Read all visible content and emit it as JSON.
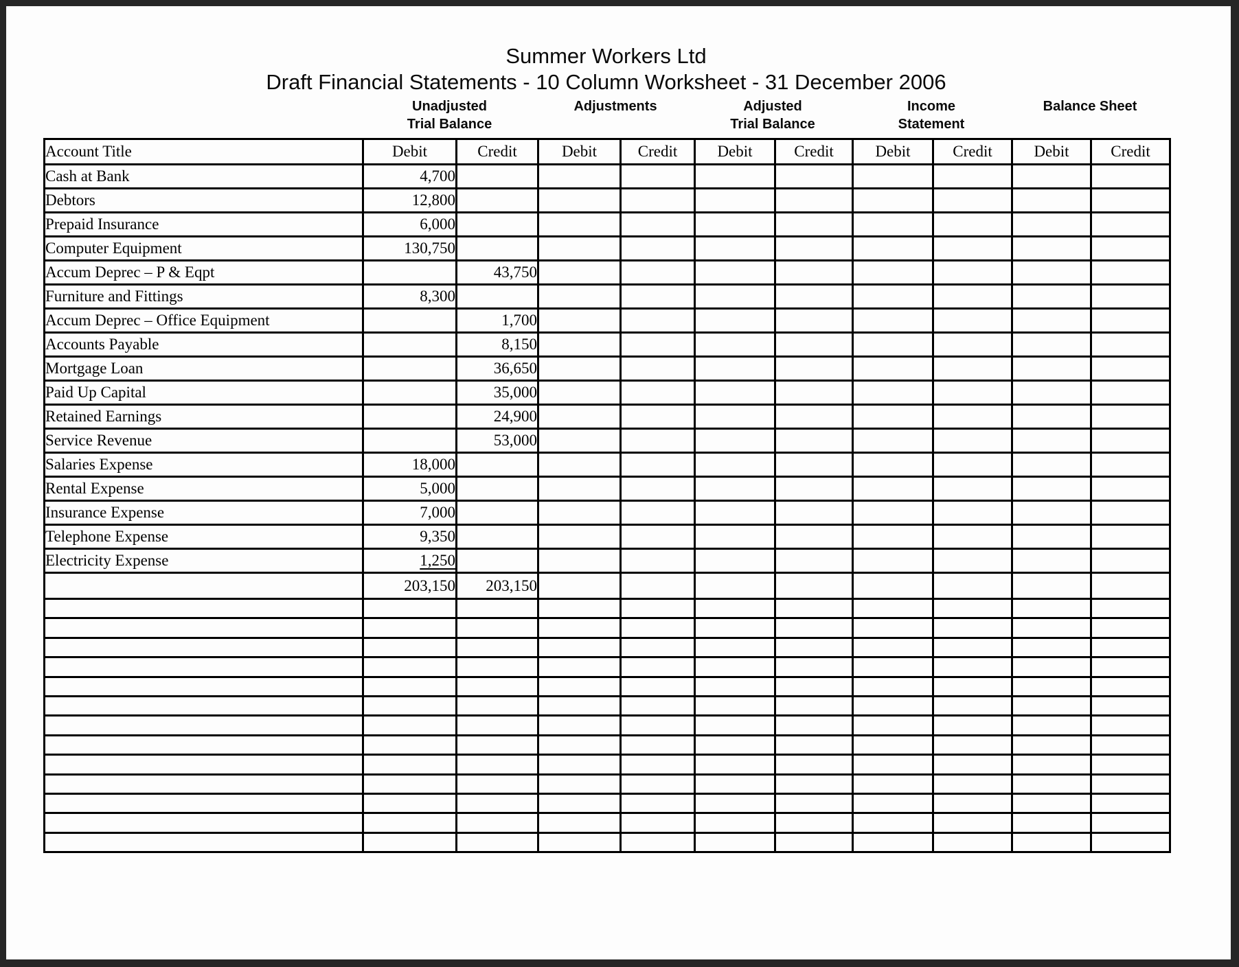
{
  "header": {
    "company": "Summer Workers Ltd",
    "document_title": "Draft Financial Statements - 10 Column Worksheet - 31 December 2006"
  },
  "column_groups": [
    {
      "line1": "Unadjusted",
      "line2": "Trial Balance"
    },
    {
      "line1": "Adjustments",
      "line2": ""
    },
    {
      "line1": "Adjusted",
      "line2": "Trial Balance"
    },
    {
      "line1": "Income",
      "line2": "Statement"
    },
    {
      "line1": "Balance Sheet",
      "line2": ""
    }
  ],
  "table": {
    "headers": {
      "account": "Account Title",
      "debit": "Debit",
      "credit": "Credit"
    },
    "rows": [
      {
        "account": "Cash at Bank",
        "debit": "4,700",
        "credit": ""
      },
      {
        "account": "Debtors",
        "debit": "12,800",
        "credit": ""
      },
      {
        "account": "Prepaid Insurance",
        "debit": "6,000",
        "credit": ""
      },
      {
        "account": "Computer Equipment",
        "debit": "130,750",
        "credit": ""
      },
      {
        "account": "Accum Deprec – P & Eqpt",
        "debit": "",
        "credit": "43,750"
      },
      {
        "account": "Furniture and Fittings",
        "debit": "8,300",
        "credit": ""
      },
      {
        "account": "Accum Deprec – Office Equipment",
        "debit": "",
        "credit": "1,700"
      },
      {
        "account": "Accounts Payable",
        "debit": "",
        "credit": "8,150"
      },
      {
        "account": "Mortgage Loan",
        "debit": "",
        "credit": "36,650"
      },
      {
        "account": "Paid Up Capital",
        "debit": "",
        "credit": "35,000"
      },
      {
        "account": "Retained Earnings",
        "debit": "",
        "credit": "24,900"
      },
      {
        "account": "Service Revenue",
        "debit": "",
        "credit": "53,000"
      },
      {
        "account": "Salaries Expense",
        "debit": "18,000",
        "credit": ""
      },
      {
        "account": "Rental Expense",
        "debit": "5,000",
        "credit": ""
      },
      {
        "account": "Insurance Expense",
        "debit": "7,000",
        "credit": ""
      },
      {
        "account": "Telephone Expense",
        "debit": "9,350",
        "credit": ""
      },
      {
        "account": "Electricity Expense",
        "debit": "1,250",
        "credit": "",
        "underline": true
      }
    ],
    "totals": {
      "debit": "203,150",
      "credit": "203,150"
    },
    "empty_row_count": 13
  },
  "colors": {
    "ink": "#000000",
    "frame": "#262626",
    "paper": "#fdfdfd"
  }
}
